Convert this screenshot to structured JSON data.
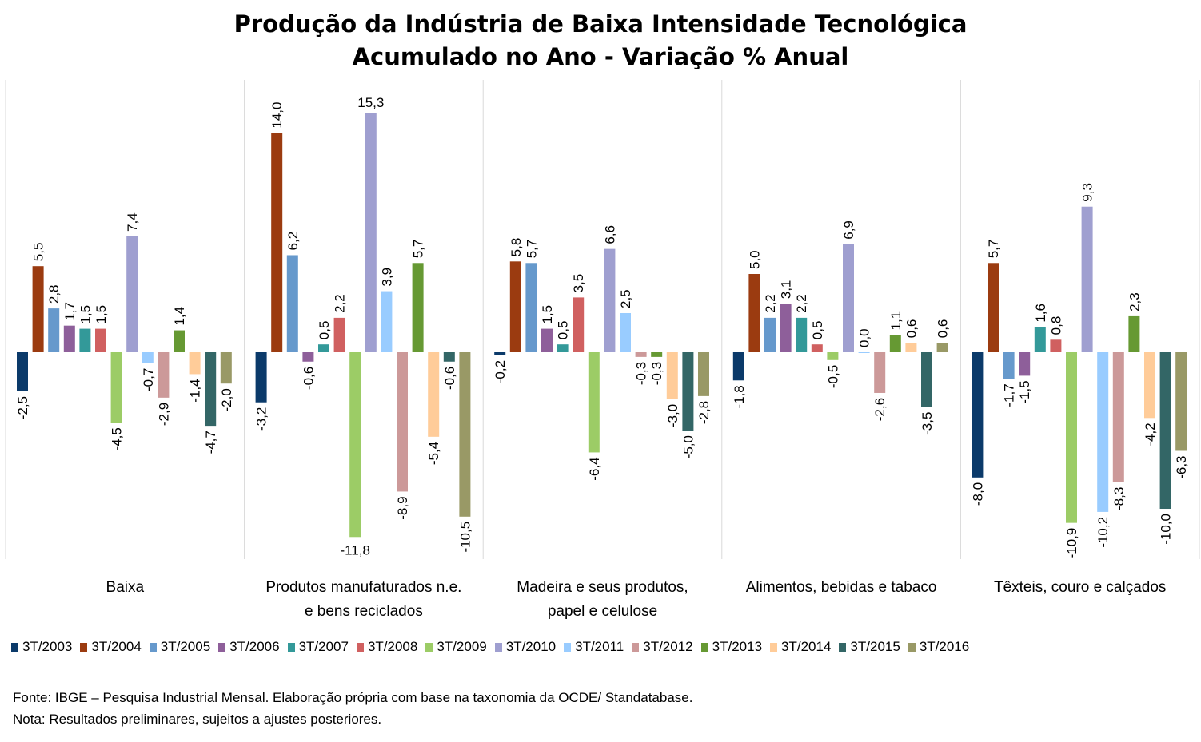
{
  "chart_data": {
    "type": "bar",
    "title": "Produção da Indústria de Baixa Intensidade Tecnológica",
    "subtitle": "Acumulado no Ano - Variação % Anual",
    "categories": [
      "Baixa",
      "Produtos manufaturados n.e. e bens reciclados",
      "Madeira e seus produtos, papel e celulose",
      "Alimentos, bebidas e tabaco",
      "Têxteis, couro e calçados"
    ],
    "category_lines": [
      [
        "Baixa"
      ],
      [
        "Produtos manufaturados n.e.",
        "e bens reciclados"
      ],
      [
        "Madeira e seus produtos,",
        "papel e celulose"
      ],
      [
        "Alimentos, bebidas e tabaco"
      ],
      [
        "Têxteis, couro e calçados"
      ]
    ],
    "ylim": [
      -12.5,
      16.5
    ],
    "grid": false,
    "legend_position": "bottom",
    "series": [
      {
        "name": "3T/2003",
        "color": "#0b3a6a",
        "values": [
          -2.5,
          -3.2,
          -0.2,
          -1.8,
          -8.0
        ],
        "labels": [
          "-2,5",
          "-3,2",
          "-0,2",
          "-1,8",
          "-8,0"
        ]
      },
      {
        "name": "3T/2004",
        "color": "#9b3b10",
        "values": [
          5.5,
          14.0,
          5.8,
          5.0,
          5.7
        ],
        "labels": [
          "5,5",
          "14,0",
          "5,8",
          "5,0",
          "5,7"
        ]
      },
      {
        "name": "3T/2005",
        "color": "#6699cc",
        "values": [
          2.8,
          6.2,
          5.7,
          2.2,
          -1.7
        ],
        "labels": [
          "2,8",
          "6,2",
          "5,7",
          "2,2",
          "-1,7"
        ]
      },
      {
        "name": "3T/2006",
        "color": "#8e5f9a",
        "values": [
          1.7,
          -0.6,
          1.5,
          3.1,
          -1.5
        ],
        "labels": [
          "1,7",
          "-0,6",
          "1,5",
          "3,1",
          "-1,5"
        ]
      },
      {
        "name": "3T/2007",
        "color": "#339999",
        "values": [
          1.5,
          0.5,
          0.5,
          2.2,
          1.6
        ],
        "labels": [
          "1,5",
          "0,5",
          "0,5",
          "2,2",
          "1,6"
        ]
      },
      {
        "name": "3T/2008",
        "color": "#d06060",
        "values": [
          1.5,
          2.2,
          3.5,
          0.5,
          0.8
        ],
        "labels": [
          "1,5",
          "2,2",
          "3,5",
          "0,5",
          "0,8"
        ]
      },
      {
        "name": "3T/2009",
        "color": "#9ccc66",
        "values": [
          -4.5,
          -11.8,
          -6.4,
          -0.5,
          -10.9
        ],
        "labels": [
          "-4,5",
          "-11,8",
          "-6,4",
          "-0,5",
          "-10,9"
        ]
      },
      {
        "name": "3T/2010",
        "color": "#9f9fd0",
        "values": [
          7.4,
          15.3,
          6.6,
          6.9,
          9.3
        ],
        "labels": [
          "7,4",
          "15,3",
          "6,6",
          "6,9",
          "9,3"
        ]
      },
      {
        "name": "3T/2011",
        "color": "#99ccff",
        "values": [
          -0.7,
          3.9,
          2.5,
          0.0,
          -10.2
        ],
        "labels": [
          "-0,7",
          "3,9",
          "2,5",
          "0,0",
          "-10,2"
        ]
      },
      {
        "name": "3T/2012",
        "color": "#cc9999",
        "values": [
          -2.9,
          -8.9,
          -0.3,
          -2.6,
          -8.3
        ],
        "labels": [
          "-2,9",
          "-8,9",
          "-0,3",
          "-2,6",
          "-8,3"
        ]
      },
      {
        "name": "3T/2013",
        "color": "#669933",
        "values": [
          1.4,
          5.7,
          -0.3,
          1.1,
          2.3
        ],
        "labels": [
          "1,4",
          "5,7",
          "-0,3",
          "1,1",
          "2,3"
        ]
      },
      {
        "name": "3T/2014",
        "color": "#ffcc99",
        "values": [
          -1.4,
          -5.4,
          -3.0,
          0.6,
          -4.2
        ],
        "labels": [
          "-1,4",
          "-5,4",
          "-3,0",
          "0,6",
          "-4,2"
        ]
      },
      {
        "name": "3T/2015",
        "color": "#336666",
        "values": [
          -4.7,
          -0.6,
          -5.0,
          -3.5,
          -10.0
        ],
        "labels": [
          "-4,7",
          "-0,6",
          "-5,0",
          "-3,5",
          "-10,0"
        ]
      },
      {
        "name": "3T/2016",
        "color": "#999966",
        "values": [
          -2.0,
          -10.5,
          -2.8,
          0.6,
          -6.3
        ],
        "labels": [
          "-2,0",
          "-10,5",
          "-2,8",
          "0,6",
          "-6,3"
        ]
      }
    ]
  },
  "notes": {
    "source": "Fonte: IBGE – Pesquisa Industrial Mensal. Elaboração própria com base na taxonomia da OCDE/ Standatabase.",
    "note": "Nota: Resultados preliminares, sujeitos a ajustes posteriores."
  }
}
